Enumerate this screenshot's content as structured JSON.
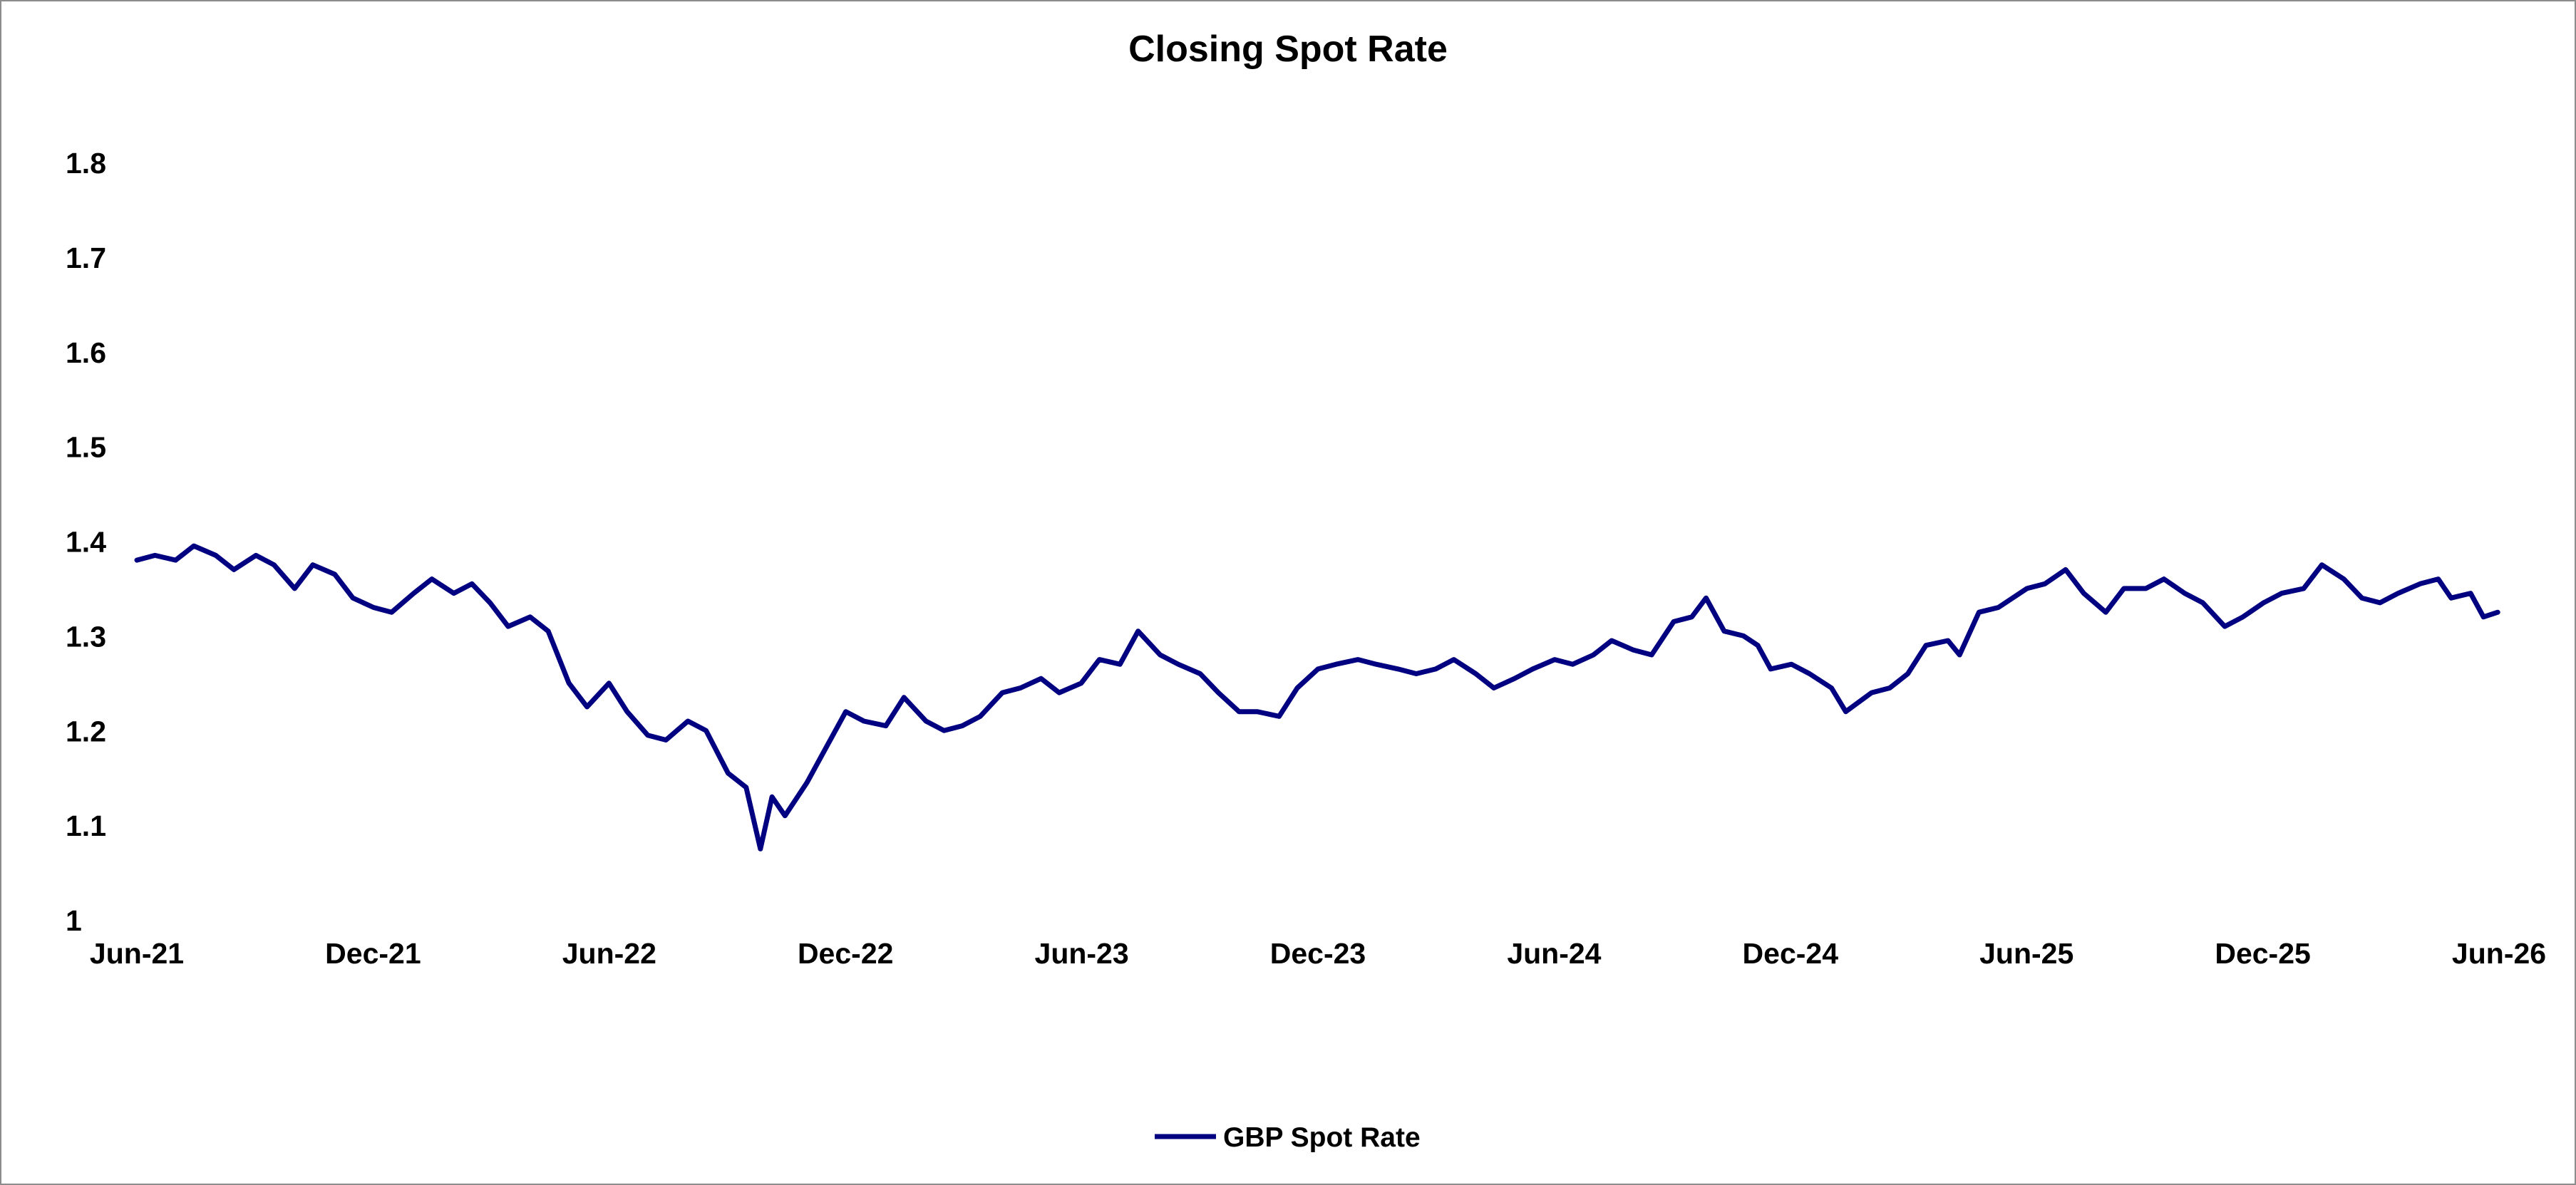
{
  "chart_data": {
    "type": "line",
    "title": "Closing Spot Rate",
    "xlabel": "",
    "ylabel": "",
    "ylim": [
      1,
      1.8
    ],
    "yticks": [
      "1",
      "1.1",
      "1.2",
      "1.3",
      "1.4",
      "1.5",
      "1.6",
      "1.7",
      "1.8"
    ],
    "xlim": [
      "2021-06",
      "2026-06"
    ],
    "xticks": [
      "Jun-21",
      "Dec-21",
      "Jun-22",
      "Dec-22",
      "Jun-23",
      "Dec-23",
      "Jun-24",
      "Dec-24",
      "Jun-25",
      "Dec-25",
      "Jun-26"
    ],
    "grid": false,
    "legend": "bottom-center",
    "series": [
      {
        "name": "GBP Spot Rate",
        "color": "#000080",
        "points": [
          [
            "2021-06-01",
            1.38
          ],
          [
            "2021-06-15",
            1.385
          ],
          [
            "2021-07-01",
            1.38
          ],
          [
            "2021-07-15",
            1.395
          ],
          [
            "2021-08-01",
            1.385
          ],
          [
            "2021-08-15",
            1.37
          ],
          [
            "2021-09-01",
            1.385
          ],
          [
            "2021-09-15",
            1.375
          ],
          [
            "2021-10-01",
            1.35
          ],
          [
            "2021-10-15",
            1.375
          ],
          [
            "2021-11-01",
            1.365
          ],
          [
            "2021-11-15",
            1.34
          ],
          [
            "2021-12-01",
            1.33
          ],
          [
            "2021-12-15",
            1.325
          ],
          [
            "2022-01-01",
            1.345
          ],
          [
            "2022-01-15",
            1.36
          ],
          [
            "2022-02-01",
            1.345
          ],
          [
            "2022-02-15",
            1.355
          ],
          [
            "2022-03-01",
            1.335
          ],
          [
            "2022-03-15",
            1.31
          ],
          [
            "2022-04-01",
            1.32
          ],
          [
            "2022-04-15",
            1.305
          ],
          [
            "2022-05-01",
            1.25
          ],
          [
            "2022-05-15",
            1.225
          ],
          [
            "2022-06-01",
            1.25
          ],
          [
            "2022-06-15",
            1.22
          ],
          [
            "2022-07-01",
            1.195
          ],
          [
            "2022-07-15",
            1.19
          ],
          [
            "2022-08-01",
            1.21
          ],
          [
            "2022-08-15",
            1.2
          ],
          [
            "2022-09-01",
            1.155
          ],
          [
            "2022-09-15",
            1.14
          ],
          [
            "2022-09-26",
            1.075
          ],
          [
            "2022-10-05",
            1.13
          ],
          [
            "2022-10-15",
            1.11
          ],
          [
            "2022-11-01",
            1.145
          ],
          [
            "2022-11-15",
            1.18
          ],
          [
            "2022-12-01",
            1.22
          ],
          [
            "2022-12-15",
            1.21
          ],
          [
            "2023-01-01",
            1.205
          ],
          [
            "2023-01-15",
            1.235
          ],
          [
            "2023-02-01",
            1.21
          ],
          [
            "2023-02-15",
            1.2
          ],
          [
            "2023-03-01",
            1.205
          ],
          [
            "2023-03-15",
            1.215
          ],
          [
            "2023-04-01",
            1.24
          ],
          [
            "2023-04-15",
            1.245
          ],
          [
            "2023-05-01",
            1.255
          ],
          [
            "2023-05-15",
            1.24
          ],
          [
            "2023-06-01",
            1.25
          ],
          [
            "2023-06-15",
            1.275
          ],
          [
            "2023-07-01",
            1.27
          ],
          [
            "2023-07-15",
            1.305
          ],
          [
            "2023-08-01",
            1.28
          ],
          [
            "2023-08-15",
            1.27
          ],
          [
            "2023-09-01",
            1.26
          ],
          [
            "2023-09-15",
            1.24
          ],
          [
            "2023-10-01",
            1.22
          ],
          [
            "2023-10-15",
            1.22
          ],
          [
            "2023-11-01",
            1.215
          ],
          [
            "2023-11-15",
            1.245
          ],
          [
            "2023-12-01",
            1.265
          ],
          [
            "2023-12-15",
            1.27
          ],
          [
            "2024-01-01",
            1.275
          ],
          [
            "2024-01-15",
            1.27
          ],
          [
            "2024-02-01",
            1.265
          ],
          [
            "2024-02-15",
            1.26
          ],
          [
            "2024-03-01",
            1.265
          ],
          [
            "2024-03-15",
            1.275
          ],
          [
            "2024-04-01",
            1.26
          ],
          [
            "2024-04-15",
            1.245
          ],
          [
            "2024-05-01",
            1.255
          ],
          [
            "2024-05-15",
            1.265
          ],
          [
            "2024-06-01",
            1.275
          ],
          [
            "2024-06-15",
            1.27
          ],
          [
            "2024-07-01",
            1.28
          ],
          [
            "2024-07-15",
            1.295
          ],
          [
            "2024-08-01",
            1.285
          ],
          [
            "2024-08-15",
            1.28
          ],
          [
            "2024-09-01",
            1.315
          ],
          [
            "2024-09-15",
            1.32
          ],
          [
            "2024-09-26",
            1.34
          ],
          [
            "2024-10-10",
            1.305
          ],
          [
            "2024-10-25",
            1.3
          ],
          [
            "2024-11-05",
            1.29
          ],
          [
            "2024-11-15",
            1.265
          ],
          [
            "2024-12-01",
            1.27
          ],
          [
            "2024-12-15",
            1.26
          ],
          [
            "2025-01-01",
            1.245
          ],
          [
            "2025-01-12",
            1.22
          ],
          [
            "2025-02-01",
            1.24
          ],
          [
            "2025-02-15",
            1.245
          ],
          [
            "2025-03-01",
            1.26
          ],
          [
            "2025-03-15",
            1.29
          ],
          [
            "2025-04-01",
            1.295
          ],
          [
            "2025-04-10",
            1.28
          ],
          [
            "2025-04-25",
            1.325
          ],
          [
            "2025-05-10",
            1.33
          ],
          [
            "2025-06-01",
            1.35
          ],
          [
            "2025-06-15",
            1.355
          ],
          [
            "2025-07-01",
            1.37
          ],
          [
            "2025-07-15",
            1.345
          ],
          [
            "2025-08-01",
            1.325
          ],
          [
            "2025-08-15",
            1.35
          ],
          [
            "2025-09-01",
            1.35
          ],
          [
            "2025-09-15",
            1.36
          ],
          [
            "2025-10-01",
            1.345
          ],
          [
            "2025-10-15",
            1.335
          ],
          [
            "2025-11-01",
            1.31
          ],
          [
            "2025-11-15",
            1.32
          ],
          [
            "2025-12-01",
            1.335
          ],
          [
            "2025-12-15",
            1.345
          ],
          [
            "2026-01-01",
            1.35
          ],
          [
            "2026-01-15",
            1.375
          ],
          [
            "2026-02-01",
            1.36
          ],
          [
            "2026-02-15",
            1.34
          ],
          [
            "2026-03-01",
            1.335
          ],
          [
            "2026-03-15",
            1.345
          ],
          [
            "2026-04-01",
            1.355
          ],
          [
            "2026-04-15",
            1.36
          ],
          [
            "2026-04-25",
            1.34
          ],
          [
            "2026-05-10",
            1.345
          ],
          [
            "2026-05-20",
            1.32
          ],
          [
            "2026-05-31",
            1.325
          ]
        ]
      }
    ]
  }
}
